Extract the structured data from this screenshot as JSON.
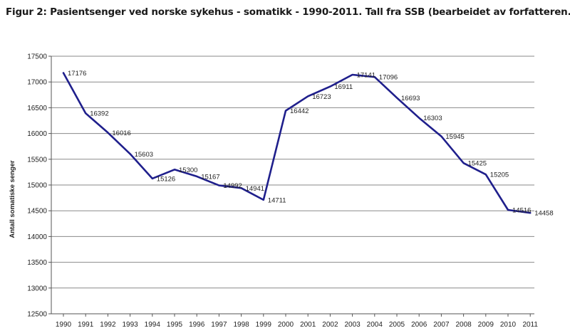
{
  "figure_title": "Figur 2: Pasientsenger ved norske sykehus - somatikk - 1990-2011. Tall fra SSB (bearbeidet av forfatteren.",
  "chart_data": {
    "type": "line",
    "title": "Figur 2: Pasientsenger ved norske sykehus - somatikk - 1990-2011. Tall fra SSB (bearbeidet av forfatteren.",
    "xlabel": "",
    "ylabel": "Antall somatiske senger",
    "x": [
      "1990",
      "1991",
      "1992",
      "1993",
      "1994",
      "1995",
      "1996",
      "1997",
      "1998",
      "1999",
      "2000",
      "2001",
      "2002",
      "2003",
      "2004",
      "2005",
      "2006",
      "2007",
      "2008",
      "2009",
      "2010",
      "2011"
    ],
    "series": [
      {
        "values": [
          17176,
          16392,
          16016,
          15603,
          15126,
          15300,
          15167,
          14992,
          14941,
          14711,
          16442,
          16723,
          16911,
          17141,
          17096,
          16693,
          16303,
          15945,
          15425,
          15205,
          14516,
          14458
        ],
        "color": "#1f1f8c"
      }
    ],
    "data_labels": [
      "17176",
      "16392",
      "16016",
      "15603",
      "15126",
      "15300",
      "15167",
      "14992",
      "14941",
      "14711",
      "16442",
      "16723",
      "16911",
      "17141",
      "17096",
      "16693",
      "16303",
      "15945",
      "15425",
      "15205",
      "14516",
      "14458"
    ],
    "ylim": [
      12500,
      17500
    ],
    "yticks": [
      "12500",
      "13000",
      "13500",
      "14000",
      "14500",
      "15000",
      "15500",
      "16000",
      "16500",
      "17000",
      "17500"
    ],
    "grid": true,
    "legend": "none"
  }
}
